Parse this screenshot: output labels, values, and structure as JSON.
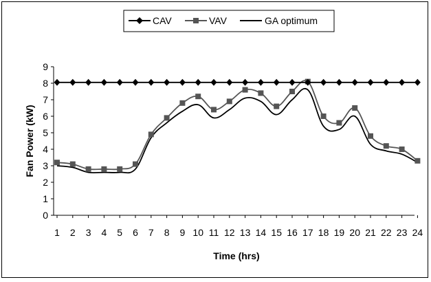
{
  "chart_data": {
    "type": "line",
    "xlabel": "Time (hrs)",
    "ylabel": "Fan Power (kW)",
    "xlim": [
      1,
      24
    ],
    "ylim": [
      0,
      9
    ],
    "yticks": [
      0,
      1,
      2,
      3,
      4,
      5,
      6,
      7,
      8,
      9
    ],
    "legend_position": "top",
    "grid": false,
    "x": [
      1,
      2,
      3,
      4,
      5,
      6,
      7,
      8,
      9,
      10,
      11,
      12,
      13,
      14,
      15,
      16,
      17,
      18,
      19,
      20,
      21,
      22,
      23,
      24
    ],
    "series": [
      {
        "name": "CAV",
        "marker": "diamond",
        "color": "#000000",
        "values": [
          8.05,
          8.05,
          8.05,
          8.05,
          8.05,
          8.05,
          8.05,
          8.05,
          8.05,
          8.05,
          8.05,
          8.05,
          8.05,
          8.05,
          8.05,
          8.05,
          8.05,
          8.05,
          8.05,
          8.05,
          8.05,
          8.05,
          8.05,
          8.05
        ]
      },
      {
        "name": "VAV",
        "marker": "square",
        "color": "#555555",
        "values": [
          3.2,
          3.1,
          2.8,
          2.8,
          2.8,
          3.1,
          4.9,
          5.9,
          6.8,
          7.2,
          6.4,
          6.9,
          7.6,
          7.4,
          6.6,
          7.5,
          8.1,
          6.0,
          5.6,
          6.5,
          4.8,
          4.2,
          4.0,
          3.3
        ]
      },
      {
        "name": "GA optimum",
        "marker": "none",
        "color": "#000000",
        "values": [
          3.0,
          2.9,
          2.6,
          2.6,
          2.6,
          2.8,
          4.7,
          5.6,
          6.3,
          6.7,
          5.9,
          6.4,
          7.1,
          6.9,
          6.1,
          7.0,
          7.6,
          5.4,
          5.2,
          6.0,
          4.3,
          3.9,
          3.7,
          3.2
        ]
      }
    ]
  }
}
